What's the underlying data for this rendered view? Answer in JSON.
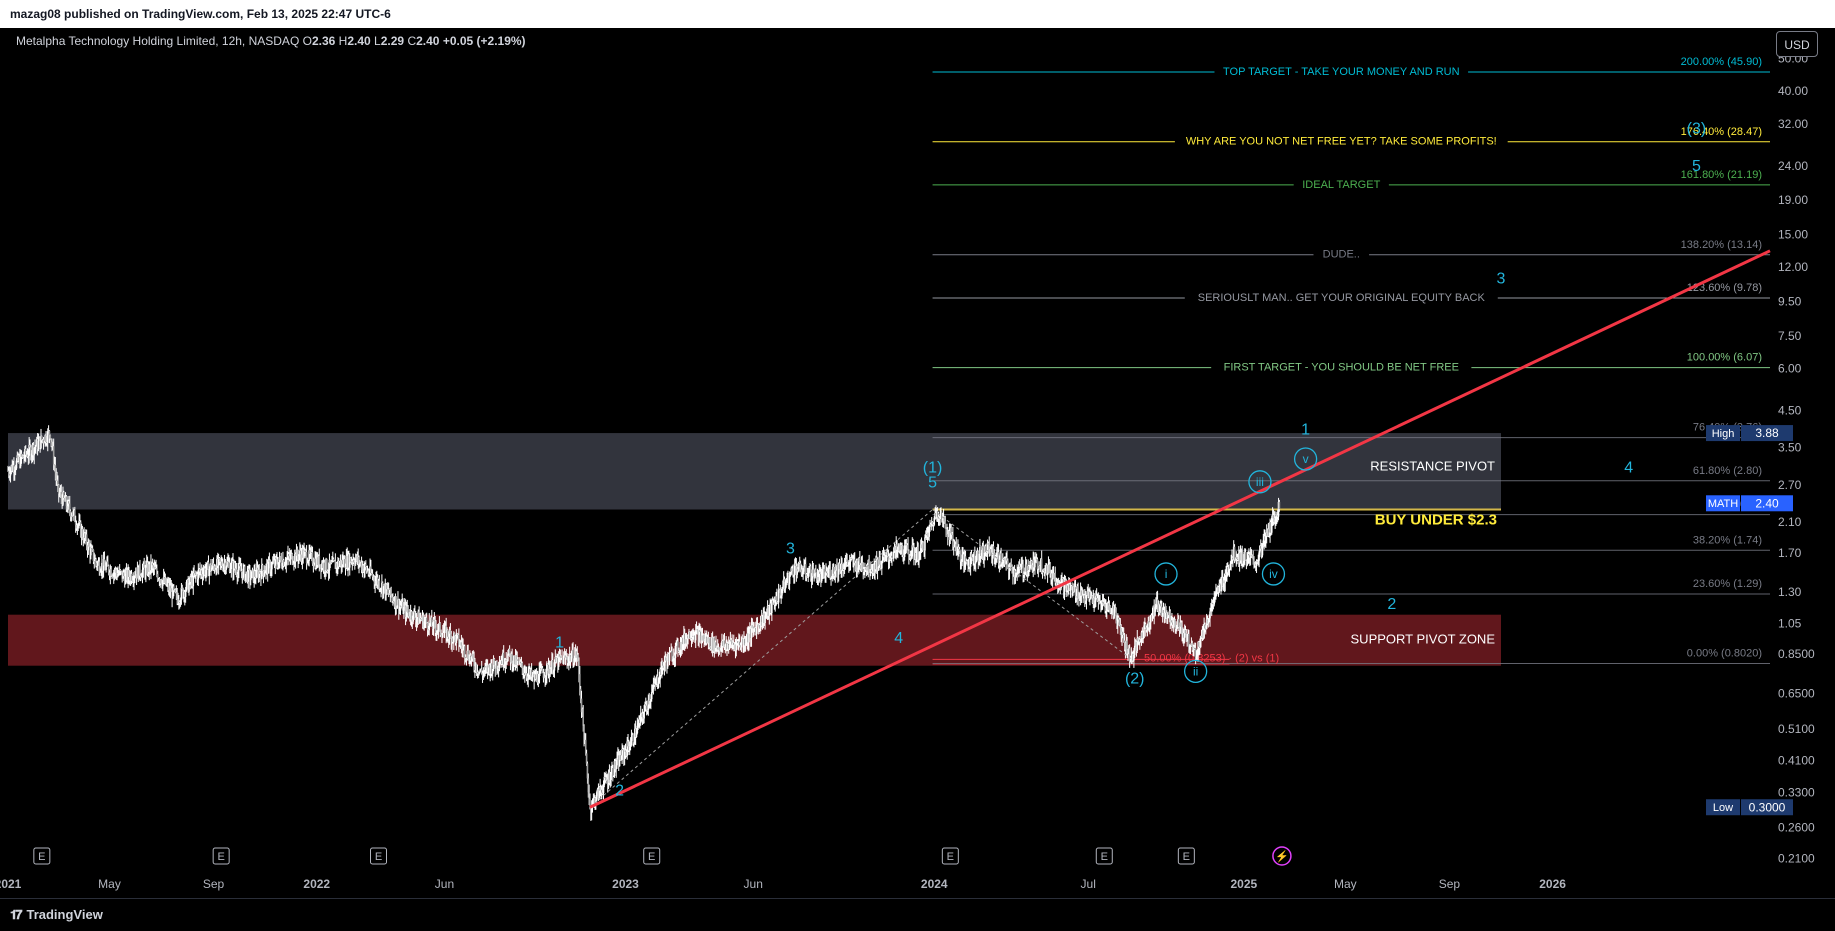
{
  "header": {
    "publish_text": "mazag08 published on TradingView.com, Feb 13, 2025 22:47 UTC-6"
  },
  "legend": {
    "name": "Metalpha Technology Holding Limited, 12h, NASDAQ",
    "o_label": "O",
    "o": "2.36",
    "h_label": "H",
    "h": "2.40",
    "l_label": "L",
    "l": "2.29",
    "c_label": "C",
    "c": "2.40",
    "change": "+0.05 (+2.19%)"
  },
  "currency": "USD",
  "footer": {
    "brand": "TradingView"
  },
  "colors": {
    "background": "#000000",
    "candles": "#ffffff",
    "trendline": "#f23645",
    "resistance_zone": "#434651",
    "support_zone": "#6b1a1f",
    "wave_label": "#22b5dc",
    "fib_cyan": "#00bcd4",
    "fib_yellow": "#ffeb3b",
    "fib_green": "#4caf50",
    "fib_gray": "#787b86",
    "fib_lightgreen": "#81c784",
    "buy_line": "#d4b84a"
  },
  "chart_data": {
    "type": "candlestick",
    "y_scale": "log",
    "ylim": [
      0.19,
      62
    ],
    "x_range": [
      "2021-01-01",
      "2026-09-15"
    ],
    "y_ticks": [
      "50.00",
      "40.00",
      "32.00",
      "24.00",
      "19.00",
      "15.00",
      "12.00",
      "9.50",
      "7.50",
      "6.00",
      "4.50",
      "3.50",
      "2.70",
      "2.10",
      "1.70",
      "1.30",
      "1.05",
      "0.8500",
      "0.6500",
      "0.5100",
      "0.4100",
      "0.3300",
      "0.2600",
      "0.2100"
    ],
    "x_ticks": [
      {
        "label": "2021",
        "date": "2021-01-01",
        "bold": true
      },
      {
        "label": "May",
        "date": "2021-05-01",
        "bold": false
      },
      {
        "label": "Sep",
        "date": "2021-09-01",
        "bold": false
      },
      {
        "label": "2022",
        "date": "2022-01-01",
        "bold": true
      },
      {
        "label": "Jun",
        "date": "2022-06-01",
        "bold": false
      },
      {
        "label": "2023",
        "date": "2023-01-01",
        "bold": true
      },
      {
        "label": "Jun",
        "date": "2023-06-01",
        "bold": false
      },
      {
        "label": "2024",
        "date": "2024-01-01",
        "bold": true
      },
      {
        "label": "Jul",
        "date": "2024-07-01",
        "bold": false
      },
      {
        "label": "2025",
        "date": "2025-01-01",
        "bold": true
      },
      {
        "label": "May",
        "date": "2025-05-01",
        "bold": false
      },
      {
        "label": "Sep",
        "date": "2025-09-01",
        "bold": false
      },
      {
        "label": "2026",
        "date": "2026-01-01",
        "bold": true
      }
    ],
    "price_path": [
      [
        "2021-01-01",
        3.0
      ],
      [
        "2021-02-05",
        3.6
      ],
      [
        "2021-02-20",
        3.9
      ],
      [
        "2021-03-01",
        2.6
      ],
      [
        "2021-03-20",
        2.2
      ],
      [
        "2021-04-15",
        1.6
      ],
      [
        "2021-05-20",
        1.45
      ],
      [
        "2021-06-20",
        1.55
      ],
      [
        "2021-07-20",
        1.25
      ],
      [
        "2021-08-15",
        1.5
      ],
      [
        "2021-09-15",
        1.6
      ],
      [
        "2021-10-15",
        1.45
      ],
      [
        "2021-11-15",
        1.6
      ],
      [
        "2021-12-15",
        1.7
      ],
      [
        "2022-01-15",
        1.55
      ],
      [
        "2022-02-15",
        1.65
      ],
      [
        "2022-03-15",
        1.4
      ],
      [
        "2022-04-15",
        1.15
      ],
      [
        "2022-05-15",
        1.05
      ],
      [
        "2022-06-15",
        0.95
      ],
      [
        "2022-07-15",
        0.75
      ],
      [
        "2022-08-15",
        0.85
      ],
      [
        "2022-09-15",
        0.72
      ],
      [
        "2022-10-15",
        0.82
      ],
      [
        "2022-11-05",
        0.85
      ],
      [
        "2022-11-20",
        0.3
      ],
      [
        "2022-12-15",
        0.38
      ],
      [
        "2023-01-10",
        0.48
      ],
      [
        "2023-02-15",
        0.8
      ],
      [
        "2023-03-20",
        1.0
      ],
      [
        "2023-04-20",
        0.9
      ],
      [
        "2023-05-20",
        0.93
      ],
      [
        "2023-06-20",
        1.15
      ],
      [
        "2023-07-20",
        1.55
      ],
      [
        "2023-08-20",
        1.45
      ],
      [
        "2023-09-20",
        1.6
      ],
      [
        "2023-10-20",
        1.55
      ],
      [
        "2023-11-20",
        1.75
      ],
      [
        "2023-12-15",
        1.7
      ],
      [
        "2024-01-05",
        2.3
      ],
      [
        "2024-02-05",
        1.6
      ],
      [
        "2024-03-05",
        1.75
      ],
      [
        "2024-04-05",
        1.5
      ],
      [
        "2024-05-05",
        1.6
      ],
      [
        "2024-06-05",
        1.35
      ],
      [
        "2024-07-05",
        1.25
      ],
      [
        "2024-08-01",
        1.15
      ],
      [
        "2024-08-20",
        0.83
      ],
      [
        "2024-09-20",
        1.2
      ],
      [
        "2024-10-15",
        1.05
      ],
      [
        "2024-11-05",
        0.86
      ],
      [
        "2024-11-25",
        1.2
      ],
      [
        "2024-12-20",
        1.7
      ],
      [
        "2025-01-15",
        1.6
      ],
      [
        "2025-02-13",
        2.4
      ]
    ],
    "zones": [
      {
        "name": "resistance",
        "label": "RESISTANCE PIVOT",
        "from": "2021-01-01",
        "to": "2025-11-01",
        "low": 2.3,
        "high": 3.88
      },
      {
        "name": "support",
        "label": "SUPPORT PIVOT ZONE",
        "from": "2021-01-01",
        "to": "2025-11-01",
        "low": 0.79,
        "high": 1.12
      }
    ],
    "trendline": {
      "from": [
        "2022-11-20",
        0.3
      ],
      "to": [
        "2026-09-15",
        13.5
      ]
    },
    "buy_line": {
      "label": "BUY UNDER $2.3",
      "price": 2.3,
      "from": "2023-12-30",
      "to": "2025-11-01"
    },
    "fib_levels": [
      {
        "pct": "200.00% (45.90)",
        "price": 45.9,
        "label": "TOP TARGET - TAKE YOUR MONEY AND RUN",
        "color": "#00bcd4"
      },
      {
        "pct": "176.40% (28.47)",
        "price": 28.47,
        "label": "WHY ARE YOU NOT NET FREE YET? TAKE SOME PROFITS!",
        "color": "#ffeb3b"
      },
      {
        "pct": "161.80% (21.19)",
        "price": 21.19,
        "label": "IDEAL TARGET",
        "color": "#4caf50"
      },
      {
        "pct": "138.20% (13.14)",
        "price": 13.14,
        "label": "DUDE..",
        "color": "#787b86"
      },
      {
        "pct": "123.60% (9.78)",
        "price": 9.78,
        "label": "SERIOUSLT MAN.. GET YOUR ORIGINAL EQUITY BACK",
        "color": "#9598a1"
      },
      {
        "pct": "100.00% (6.07)",
        "price": 6.07,
        "label": "FIRST TARGET - YOU SHOULD BE NET FREE",
        "color": "#81c784"
      },
      {
        "pct": "76.40% (3.76)",
        "price": 3.76,
        "label": "",
        "color": "#787b86"
      },
      {
        "pct": "61.80% (2.80)",
        "price": 2.8,
        "label": "",
        "color": "#787b86"
      },
      {
        "pct": "50.00%",
        "price": 2.22,
        "label": "",
        "color": "#787b86"
      },
      {
        "pct": "38.20% (1.74)",
        "price": 1.74,
        "label": "",
        "color": "#787b86"
      },
      {
        "pct": "23.60% (1.29)",
        "price": 1.29,
        "label": "",
        "color": "#787b86"
      },
      {
        "pct": "0.00% (0.8020)",
        "price": 0.802,
        "label": "",
        "color": "#787b86"
      }
    ],
    "fib_from": "2023-12-30",
    "fib_to": "2026-09-15",
    "retracement": {
      "label": "50.00% (0.8253) · (2) vs (1)",
      "price": 0.8253,
      "from": "2023-12-30",
      "to": "2024-12-15"
    },
    "wave_labels": [
      {
        "text": "1",
        "date": "2022-10-15",
        "price": 0.92,
        "circled": false
      },
      {
        "text": "2",
        "date": "2022-12-25",
        "price": 0.335,
        "circled": false
      },
      {
        "text": "3",
        "date": "2023-07-15",
        "price": 1.75,
        "circled": false
      },
      {
        "text": "4",
        "date": "2023-11-20",
        "price": 0.95,
        "circled": false
      },
      {
        "text": "5",
        "date": "2023-12-30",
        "price": 2.75,
        "circled": false
      },
      {
        "text": "(1)",
        "date": "2023-12-30",
        "price": 3.05,
        "circled": false
      },
      {
        "text": "(2)",
        "date": "2024-08-25",
        "price": 0.72,
        "circled": false
      },
      {
        "text": "i",
        "date": "2024-10-01",
        "price": 1.48,
        "circled": true
      },
      {
        "text": "ii",
        "date": "2024-11-05",
        "price": 0.76,
        "circled": true
      },
      {
        "text": "iii",
        "date": "2025-01-20",
        "price": 2.78,
        "circled": true
      },
      {
        "text": "iv",
        "date": "2025-02-05",
        "price": 1.48,
        "circled": true
      },
      {
        "text": "v",
        "date": "2025-03-15",
        "price": 3.25,
        "circled": true
      },
      {
        "text": "1",
        "date": "2025-03-15",
        "price": 3.95,
        "circled": false
      },
      {
        "text": "2",
        "date": "2025-06-25",
        "price": 1.2,
        "circled": false
      },
      {
        "text": "3",
        "date": "2025-11-01",
        "price": 11.1,
        "circled": false
      },
      {
        "text": "4",
        "date": "2026-04-01",
        "price": 3.05,
        "circled": false
      },
      {
        "text": "5",
        "date": "2026-06-20",
        "price": 24.0,
        "circled": false
      },
      {
        "text": "(3)",
        "date": "2026-06-20",
        "price": 31.0,
        "circled": false
      }
    ],
    "events": [
      {
        "text": "E",
        "date": "2021-02-10"
      },
      {
        "text": "E",
        "date": "2021-09-10"
      },
      {
        "text": "E",
        "date": "2022-03-15"
      },
      {
        "text": "E",
        "date": "2023-02-01"
      },
      {
        "text": "E",
        "date": "2024-01-20"
      },
      {
        "text": "E",
        "date": "2024-07-20"
      },
      {
        "text": "E",
        "date": "2024-10-25"
      },
      {
        "text": "⚡",
        "date": "2025-02-15",
        "dividend": true
      }
    ],
    "price_tags": [
      {
        "name": "High",
        "value": "3.88",
        "price": 3.88,
        "color": "#1e3a6e"
      },
      {
        "name": "MATH",
        "value": "2.40",
        "price": 2.4,
        "color": "#2962ff"
      },
      {
        "name": "Low",
        "value": "0.3000",
        "price": 0.3,
        "color": "#1e3a6e"
      }
    ]
  }
}
